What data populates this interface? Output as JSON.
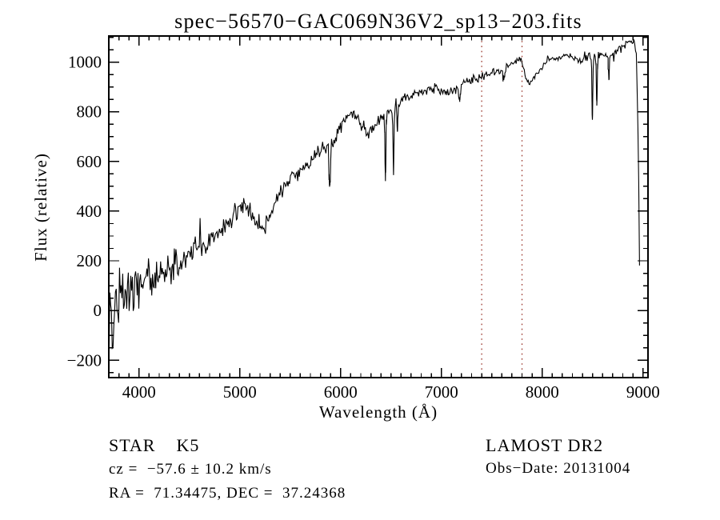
{
  "annotations": {
    "classification": "STAR    K5",
    "survey": "LAMOST DR2",
    "cz": "cz =  −57.6 ± 10.2 km/s",
    "obs_date": "Obs−Date: 20131004",
    "ra_dec": "RA =  71.34475, DEC =  37.24368"
  },
  "chart_data": {
    "type": "line",
    "title": "spec−56570−GAC069N36V2_sp13−203.fits",
    "xlabel": "Wavelength (Å)",
    "ylabel": "Flux (relative)",
    "xlim": [
      3700,
      9050
    ],
    "ylim": [
      -270,
      1105
    ],
    "grid": false,
    "legend": "none",
    "line_color": "#000000",
    "x_major_ticks": [
      {
        "value": 4000,
        "label": "4000"
      },
      {
        "value": 5000,
        "label": "5000"
      },
      {
        "value": 6000,
        "label": "6000"
      },
      {
        "value": 7000,
        "label": "7000"
      },
      {
        "value": 8000,
        "label": "8000"
      },
      {
        "value": 9000,
        "label": "9000"
      }
    ],
    "x_minor_step": 100,
    "y_major_ticks": [
      {
        "value": -200,
        "label": "−200"
      },
      {
        "value": 0,
        "label": "0"
      },
      {
        "value": 200,
        "label": "200"
      },
      {
        "value": 400,
        "label": "400"
      },
      {
        "value": 600,
        "label": "600"
      },
      {
        "value": 800,
        "label": "800"
      },
      {
        "value": 1000,
        "label": "1000"
      }
    ],
    "y_minor_step": 50,
    "marker_lines": {
      "style": "dotted",
      "color": "#9a372c",
      "wavelengths": [
        7400,
        7800
      ]
    },
    "series": [
      {
        "name": "spectrum",
        "color": "#000000",
        "seed": 1004,
        "sample_step_angstrom": 8,
        "continuum_anchors": [
          [
            3700,
            -40
          ],
          [
            3760,
            15
          ],
          [
            3840,
            55
          ],
          [
            3950,
            90
          ],
          [
            4060,
            130
          ],
          [
            4180,
            155
          ],
          [
            4300,
            175
          ],
          [
            4420,
            205
          ],
          [
            4540,
            245
          ],
          [
            4660,
            270
          ],
          [
            4780,
            310
          ],
          [
            4880,
            355
          ],
          [
            4980,
            410
          ],
          [
            5050,
            430
          ],
          [
            5120,
            395
          ],
          [
            5185,
            330
          ],
          [
            5245,
            320
          ],
          [
            5310,
            390
          ],
          [
            5390,
            470
          ],
          [
            5480,
            520
          ],
          [
            5580,
            555
          ],
          [
            5680,
            595
          ],
          [
            5780,
            640
          ],
          [
            5870,
            660
          ],
          [
            5940,
            690
          ],
          [
            6010,
            745
          ],
          [
            6080,
            785
          ],
          [
            6150,
            795
          ],
          [
            6210,
            745
          ],
          [
            6280,
            715
          ],
          [
            6360,
            760
          ],
          [
            6450,
            790
          ],
          [
            6550,
            825
          ],
          [
            6650,
            855
          ],
          [
            6750,
            875
          ],
          [
            6850,
            885
          ],
          [
            6950,
            895
          ],
          [
            7040,
            880
          ],
          [
            7120,
            880
          ],
          [
            7210,
            915
          ],
          [
            7310,
            930
          ],
          [
            7410,
            945
          ],
          [
            7510,
            955
          ],
          [
            7610,
            975
          ],
          [
            7710,
            1000
          ],
          [
            7790,
            1008
          ],
          [
            7845,
            930
          ],
          [
            7885,
            915
          ],
          [
            7955,
            960
          ],
          [
            8060,
            1005
          ],
          [
            8160,
            1020
          ],
          [
            8260,
            1030
          ],
          [
            8360,
            1005
          ],
          [
            8460,
            1020
          ],
          [
            8560,
            1025
          ],
          [
            8660,
            1020
          ],
          [
            8760,
            1055
          ],
          [
            8860,
            1080
          ],
          [
            8905,
            1090
          ],
          [
            8935,
            1035
          ],
          [
            8955,
            650
          ],
          [
            8970,
            40
          ]
        ],
        "noise_amplitude_anchors": [
          [
            3700,
            240
          ],
          [
            3750,
            160
          ],
          [
            3820,
            130
          ],
          [
            3920,
            105
          ],
          [
            4050,
            90
          ],
          [
            4200,
            78
          ],
          [
            4400,
            65
          ],
          [
            4600,
            56
          ],
          [
            4800,
            48
          ],
          [
            5000,
            42
          ],
          [
            5200,
            38
          ],
          [
            5400,
            34
          ],
          [
            5600,
            31
          ],
          [
            5800,
            29
          ],
          [
            6000,
            27
          ],
          [
            6200,
            26
          ],
          [
            6400,
            25
          ],
          [
            6700,
            22
          ],
          [
            7000,
            20
          ],
          [
            7300,
            18
          ],
          [
            7600,
            16
          ],
          [
            7900,
            14
          ],
          [
            8200,
            13
          ],
          [
            8500,
            15
          ],
          [
            8750,
            17
          ],
          [
            8900,
            18
          ],
          [
            8970,
            22
          ]
        ],
        "absorption_lines": [
          {
            "center": 5893,
            "depth": 180,
            "sigma": 10
          },
          {
            "center": 6445,
            "depth": 240,
            "sigma": 7
          },
          {
            "center": 6525,
            "depth": 250,
            "sigma": 7
          },
          {
            "center": 6563,
            "depth": 110,
            "sigma": 6
          },
          {
            "center": 7180,
            "depth": 60,
            "sigma": 12
          },
          {
            "center": 7620,
            "depth": 45,
            "sigma": 14
          },
          {
            "center": 8498,
            "depth": 260,
            "sigma": 6
          },
          {
            "center": 8542,
            "depth": 190,
            "sigma": 6
          },
          {
            "center": 8662,
            "depth": 90,
            "sigma": 6
          }
        ]
      }
    ]
  }
}
